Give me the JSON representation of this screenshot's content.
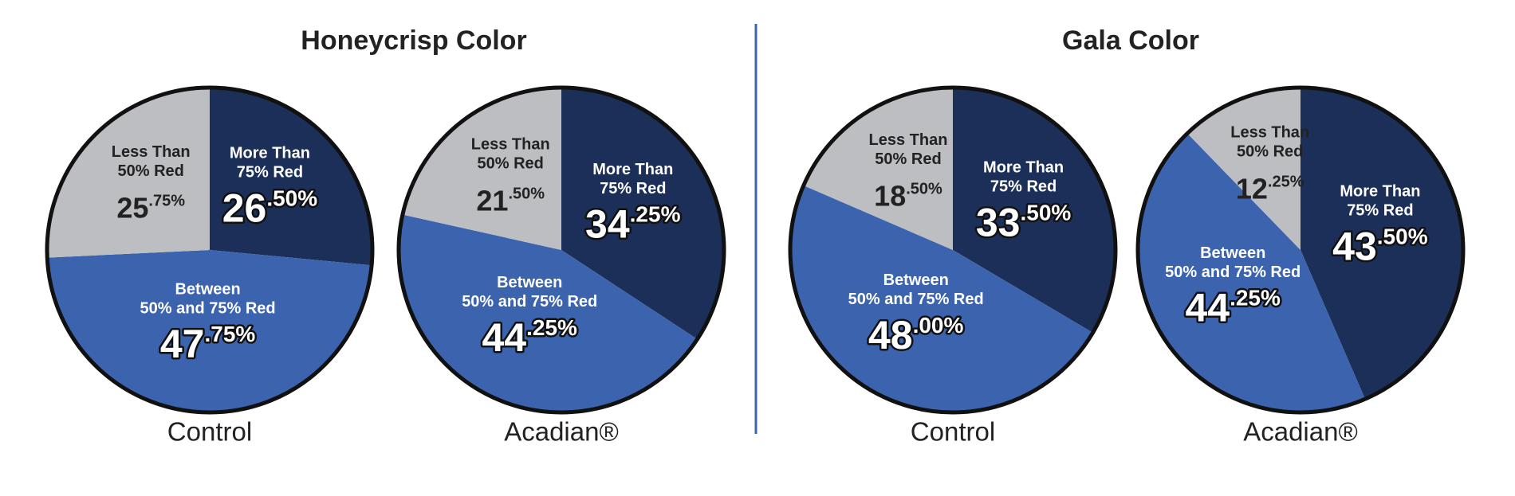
{
  "headings": [
    "Honeycrisp Color",
    "Gala Color"
  ],
  "chart_data": [
    {
      "type": "pie",
      "heading": 0,
      "label": "Control",
      "categories": [
        [
          "More Than",
          "75% Red"
        ],
        [
          "Between",
          "50% and 75% Red"
        ],
        [
          "Less Than",
          "50% Red"
        ]
      ],
      "values": [
        26.5,
        47.75,
        25.75
      ],
      "value_labels": [
        "26.50%",
        "47.75%",
        "25.75%"
      ],
      "colors": [
        "#1b2f58",
        "#3c64ae",
        "#bdbec1"
      ]
    },
    {
      "type": "pie",
      "heading": 0,
      "label": "Acadian®",
      "categories": [
        [
          "More Than",
          "75% Red"
        ],
        [
          "Between",
          "50% and 75% Red"
        ],
        [
          "Less Than",
          "50% Red"
        ]
      ],
      "values": [
        34.25,
        44.25,
        21.5
      ],
      "value_labels": [
        "34.25%",
        "44.25%",
        "21.50%"
      ],
      "colors": [
        "#1b2f58",
        "#3c64ae",
        "#bdbec1"
      ]
    },
    {
      "type": "pie",
      "heading": 1,
      "label": "Control",
      "categories": [
        [
          "More Than",
          "75% Red"
        ],
        [
          "Between",
          "50% and 75% Red"
        ],
        [
          "Less Than",
          "50% Red"
        ]
      ],
      "values": [
        33.5,
        48.0,
        18.5
      ],
      "value_labels": [
        "33.50%",
        "48.00%",
        "18.50%"
      ],
      "colors": [
        "#1b2f58",
        "#3c64ae",
        "#bdbec1"
      ]
    },
    {
      "type": "pie",
      "heading": 1,
      "label": "Acadian®",
      "categories": [
        [
          "More Than",
          "75% Red"
        ],
        [
          "Between",
          "50% and 75% Red"
        ],
        [
          "Less Than",
          "50% Red"
        ]
      ],
      "values": [
        43.5,
        44.25,
        12.25
      ],
      "value_labels": [
        "43.50%",
        "44.25%",
        "12.25%"
      ],
      "colors": [
        "#1b2f58",
        "#3c64ae",
        "#bdbec1"
      ]
    }
  ]
}
